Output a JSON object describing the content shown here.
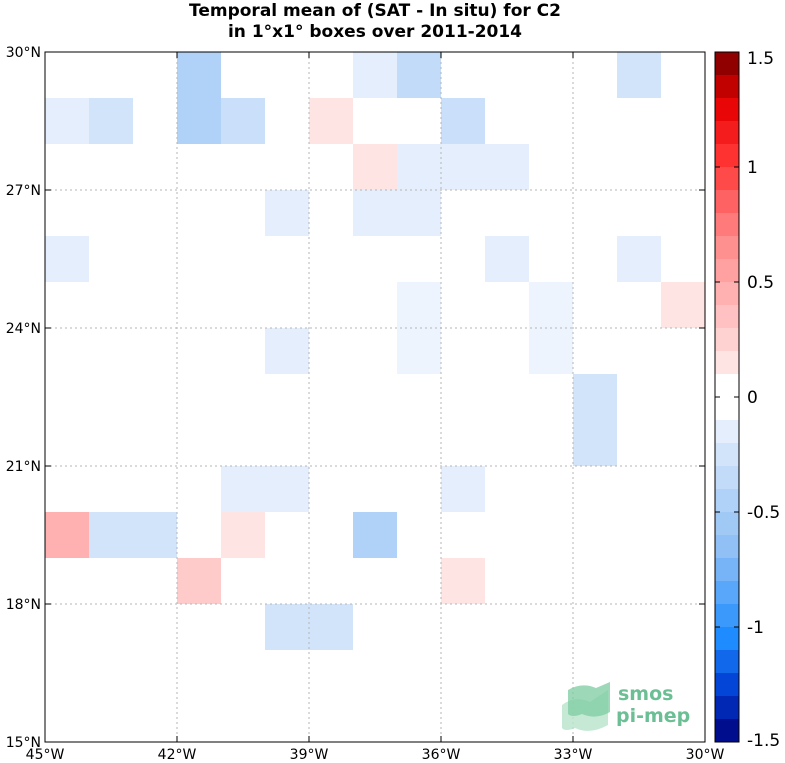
{
  "title_line1": "Temporal mean of (SAT - In situ) for C2",
  "title_line2": "in 1°x1° boxes over 2011-2014",
  "logo": {
    "line1": "smos",
    "line2": "pi-mep"
  },
  "map": {
    "lon_range": [
      -45,
      -30
    ],
    "lat_range": [
      15,
      30
    ],
    "x_ticks": [
      {
        "value": -45,
        "label": "45°W"
      },
      {
        "value": -42,
        "label": "42°W"
      },
      {
        "value": -39,
        "label": "39°W"
      },
      {
        "value": -36,
        "label": "36°W"
      },
      {
        "value": -33,
        "label": "33°W"
      },
      {
        "value": -30,
        "label": "30°W"
      }
    ],
    "y_ticks": [
      {
        "value": 30,
        "label": "30°N"
      },
      {
        "value": 27,
        "label": "27°N"
      },
      {
        "value": 24,
        "label": "24°N"
      },
      {
        "value": 21,
        "label": "21°N"
      },
      {
        "value": 18,
        "label": "18°N"
      },
      {
        "value": 15,
        "label": "15°N"
      }
    ],
    "grid": true,
    "cells": [
      {
        "lon": -42,
        "lat": 29,
        "value": -0.45
      },
      {
        "lon": -38,
        "lat": 29,
        "value": -0.15
      },
      {
        "lon": -37,
        "lat": 29,
        "value": -0.35
      },
      {
        "lon": -32,
        "lat": 29,
        "value": -0.25
      },
      {
        "lon": -45,
        "lat": 28,
        "value": -0.15
      },
      {
        "lon": -44,
        "lat": 28,
        "value": -0.25
      },
      {
        "lon": -42,
        "lat": 28,
        "value": -0.45
      },
      {
        "lon": -41,
        "lat": 28,
        "value": -0.3
      },
      {
        "lon": -39,
        "lat": 28,
        "value": 0.15
      },
      {
        "lon": -36,
        "lat": 28,
        "value": -0.3
      },
      {
        "lon": -38,
        "lat": 27,
        "value": 0.15
      },
      {
        "lon": -37,
        "lat": 27,
        "value": -0.15
      },
      {
        "lon": -36,
        "lat": 27,
        "value": -0.15
      },
      {
        "lon": -35,
        "lat": 27,
        "value": -0.15
      },
      {
        "lon": -40,
        "lat": 26,
        "value": -0.15
      },
      {
        "lon": -38,
        "lat": 26,
        "value": -0.15
      },
      {
        "lon": -37,
        "lat": 26,
        "value": -0.15
      },
      {
        "lon": -45,
        "lat": 25,
        "value": -0.15
      },
      {
        "lon": -35,
        "lat": 25,
        "value": -0.15
      },
      {
        "lon": -32,
        "lat": 25,
        "value": -0.15
      },
      {
        "lon": -37,
        "lat": 24,
        "value": -0.1
      },
      {
        "lon": -34,
        "lat": 24,
        "value": -0.1
      },
      {
        "lon": -31,
        "lat": 24,
        "value": 0.15
      },
      {
        "lon": -37,
        "lat": 23,
        "value": -0.1
      },
      {
        "lon": -34,
        "lat": 23,
        "value": -0.1
      },
      {
        "lon": -40,
        "lat": 23,
        "value": -0.15
      },
      {
        "lon": -33,
        "lat": 22,
        "value": -0.25
      },
      {
        "lon": -33,
        "lat": 21,
        "value": -0.25
      },
      {
        "lon": -41,
        "lat": 20,
        "value": -0.15
      },
      {
        "lon": -40,
        "lat": 20,
        "value": -0.15
      },
      {
        "lon": -36,
        "lat": 20,
        "value": -0.15
      },
      {
        "lon": -45,
        "lat": 19,
        "value": 0.45
      },
      {
        "lon": -44,
        "lat": 19,
        "value": -0.25
      },
      {
        "lon": -43,
        "lat": 19,
        "value": -0.25
      },
      {
        "lon": -41,
        "lat": 19,
        "value": 0.15
      },
      {
        "lon": -38,
        "lat": 19,
        "value": -0.45
      },
      {
        "lon": -42,
        "lat": 18,
        "value": 0.3
      },
      {
        "lon": -36,
        "lat": 18,
        "value": 0.15
      },
      {
        "lon": -40,
        "lat": 17,
        "value": -0.25
      },
      {
        "lon": -39,
        "lat": 17,
        "value": -0.25
      }
    ]
  },
  "colorbar": {
    "range": [
      -1.5,
      1.5
    ],
    "ticks": [
      {
        "value": 1.5,
        "label": "1.5"
      },
      {
        "value": 1.0,
        "label": "1"
      },
      {
        "value": 0.5,
        "label": "0.5"
      },
      {
        "value": 0.0,
        "label": "0"
      },
      {
        "value": -0.5,
        "label": "-0.5"
      },
      {
        "value": -1.0,
        "label": "-1"
      },
      {
        "value": -1.5,
        "label": "-1.5"
      }
    ]
  }
}
